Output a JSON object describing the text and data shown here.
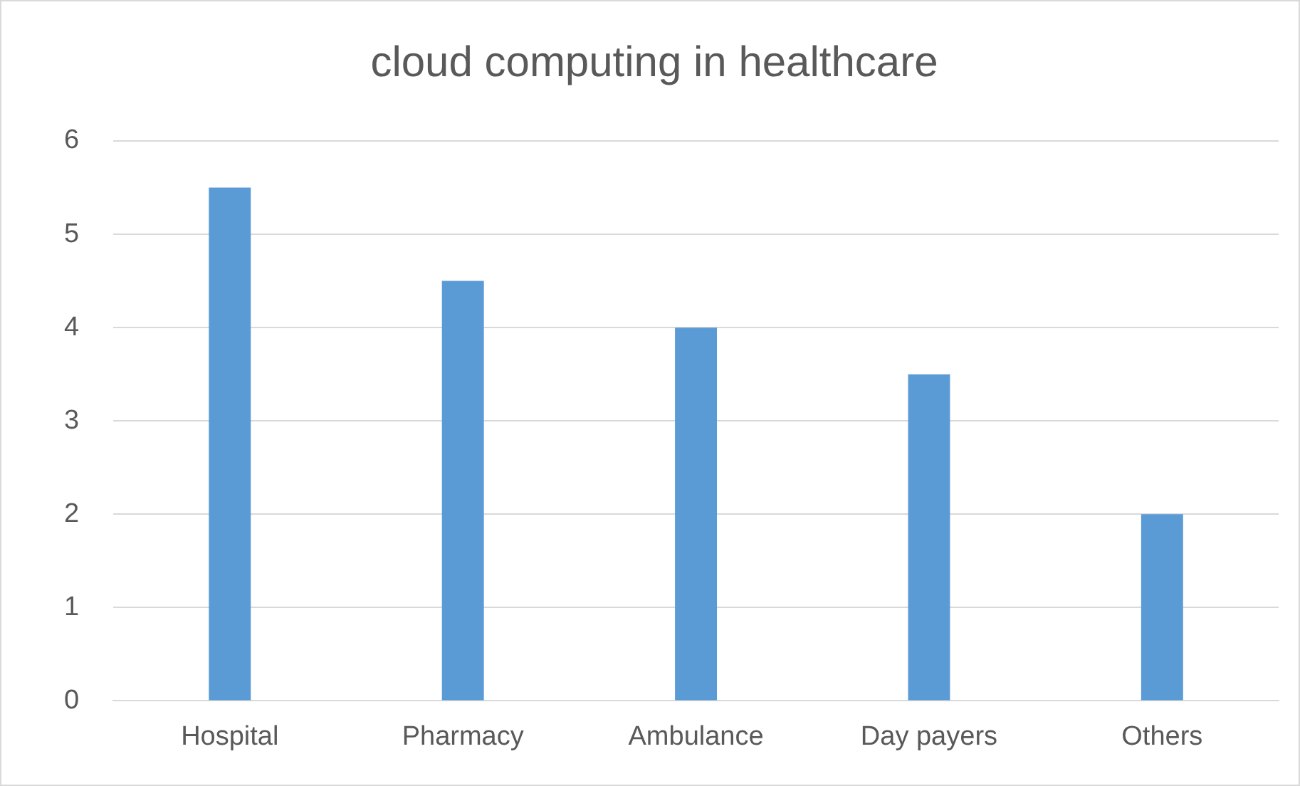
{
  "chart_data": {
    "type": "bar",
    "title": "cloud computing in healthcare",
    "categories": [
      "Hospital",
      "Pharmacy",
      "Ambulance",
      "Day payers",
      "Others"
    ],
    "values": [
      5.5,
      4.5,
      4,
      3.5,
      2
    ],
    "color": "#5b9bd5",
    "ylim": [
      0,
      6
    ],
    "yticks": [
      0,
      1,
      2,
      3,
      4,
      5,
      6
    ],
    "grid": "y",
    "legend": false
  }
}
